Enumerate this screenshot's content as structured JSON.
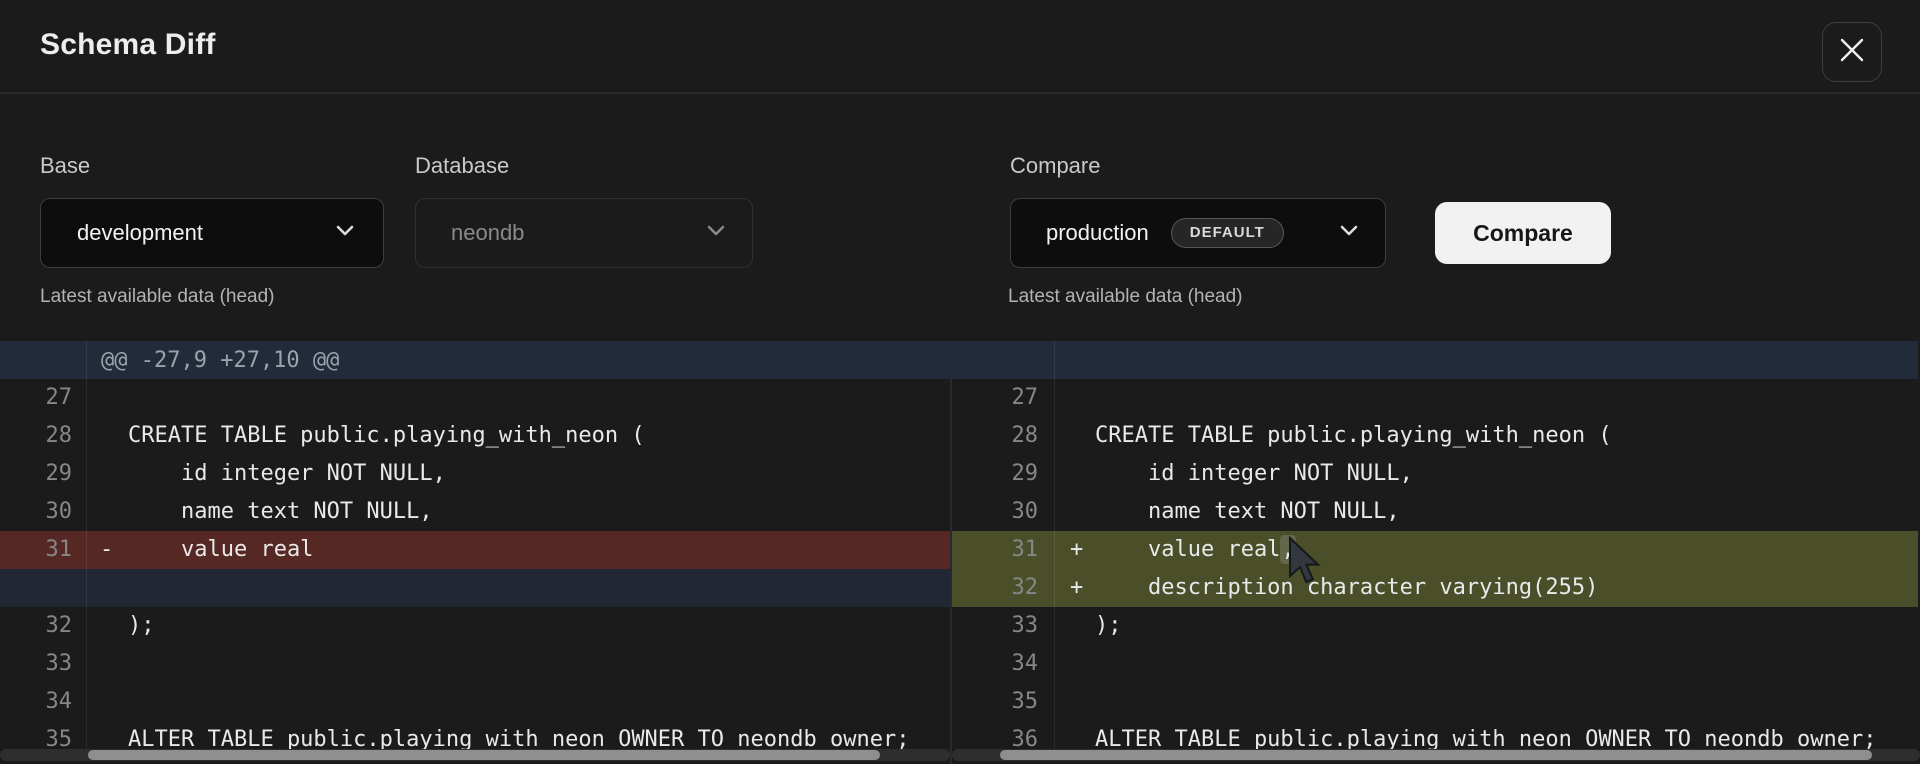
{
  "header": {
    "title": "Schema Diff"
  },
  "controls": {
    "base": {
      "label": "Base",
      "value": "development",
      "caption": "Latest available data (head)"
    },
    "database": {
      "label": "Database",
      "value": "neondb",
      "disabled": true
    },
    "compare": {
      "label": "Compare",
      "value": "production",
      "badge": "DEFAULT",
      "caption": "Latest available data (head)"
    },
    "compare_button_label": "Compare"
  },
  "icons": {
    "close": "close-icon",
    "chevron": "chevron-down-icon"
  },
  "diff": {
    "hunk_header": "@@ -27,9 +27,10 @@",
    "left_rows": [
      {
        "num": "27",
        "marker": "",
        "text": "",
        "type": "context"
      },
      {
        "num": "28",
        "marker": "",
        "text": "CREATE TABLE public.playing_with_neon (",
        "type": "context"
      },
      {
        "num": "29",
        "marker": "",
        "text": "    id integer NOT NULL,",
        "type": "context"
      },
      {
        "num": "30",
        "marker": "",
        "text": "    name text NOT NULL,",
        "type": "context"
      },
      {
        "num": "31",
        "marker": "-",
        "text": "    value real",
        "type": "removed"
      },
      {
        "num": "",
        "marker": "",
        "text": "",
        "type": "filler"
      },
      {
        "num": "32",
        "marker": "",
        "text": ");",
        "type": "context"
      },
      {
        "num": "33",
        "marker": "",
        "text": "",
        "type": "context"
      },
      {
        "num": "34",
        "marker": "",
        "text": "",
        "type": "context"
      },
      {
        "num": "35",
        "marker": "",
        "text": "ALTER TABLE public.playing_with_neon OWNER TO neondb_owner;",
        "type": "context"
      }
    ],
    "right_rows": [
      {
        "num": "27",
        "marker": "",
        "text": "",
        "type": "context"
      },
      {
        "num": "28",
        "marker": "",
        "text": "CREATE TABLE public.playing_with_neon (",
        "type": "context"
      },
      {
        "num": "29",
        "marker": "",
        "text": "    id integer NOT NULL,",
        "type": "context"
      },
      {
        "num": "30",
        "marker": "",
        "text": "    name text NOT NULL,",
        "type": "context"
      },
      {
        "num": "31",
        "marker": "+",
        "text": "    value real",
        "highlight": ",",
        "type": "added"
      },
      {
        "num": "32",
        "marker": "+",
        "text": "    description character varying(255)",
        "type": "added"
      },
      {
        "num": "33",
        "marker": "",
        "text": ");",
        "type": "context"
      },
      {
        "num": "34",
        "marker": "",
        "text": "",
        "type": "context"
      },
      {
        "num": "35",
        "marker": "",
        "text": "",
        "type": "context"
      },
      {
        "num": "36",
        "marker": "",
        "text": "ALTER TABLE public.playing_with_neon OWNER TO neondb_owner;",
        "type": "context"
      }
    ]
  },
  "colors": {
    "bg": "#1b1b1b",
    "removed-bg": "#562823",
    "added-bg": "#4a4e29",
    "filler-bg": "#212733",
    "hunk-bg": "#222b3a",
    "btn-bg": "#f2f2f2",
    "select-bg": "#0d0d0d",
    "hl-bg": "#63674b"
  }
}
